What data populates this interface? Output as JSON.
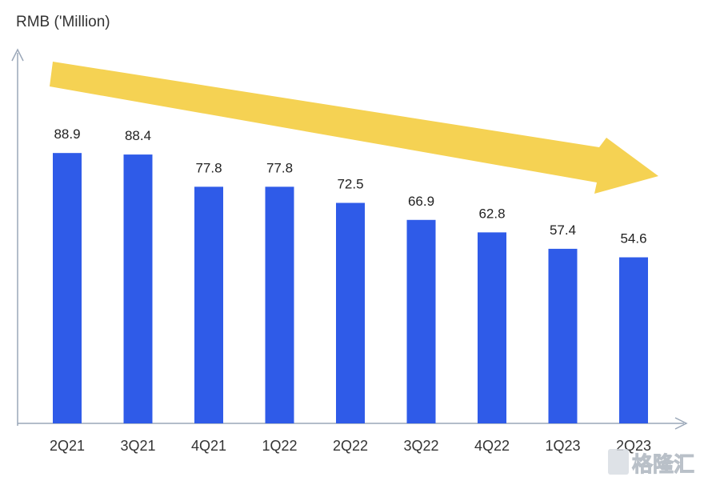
{
  "chart_data": {
    "type": "bar",
    "ylabel": "RMB ('Million)",
    "categories": [
      "2Q21",
      "3Q21",
      "4Q21",
      "1Q22",
      "2Q22",
      "3Q22",
      "4Q22",
      "1Q23",
      "2Q23"
    ],
    "values": [
      88.9,
      88.4,
      77.8,
      77.8,
      72.5,
      66.9,
      62.8,
      57.4,
      54.6
    ],
    "data_labels": [
      "88.9",
      "88.4",
      "77.8",
      "77.8",
      "72.5",
      "66.9",
      "62.8",
      "57.4",
      "54.6"
    ],
    "ylim": [
      0,
      100
    ],
    "grid": false,
    "legend": "none",
    "trend_arrow": "decreasing",
    "colors": {
      "bar": "#2f5be8",
      "arrow": "#f5d253",
      "axis": "#9aa7b8"
    }
  },
  "watermark": {
    "text": "格隆汇",
    "icon": "g-logo-icon"
  }
}
